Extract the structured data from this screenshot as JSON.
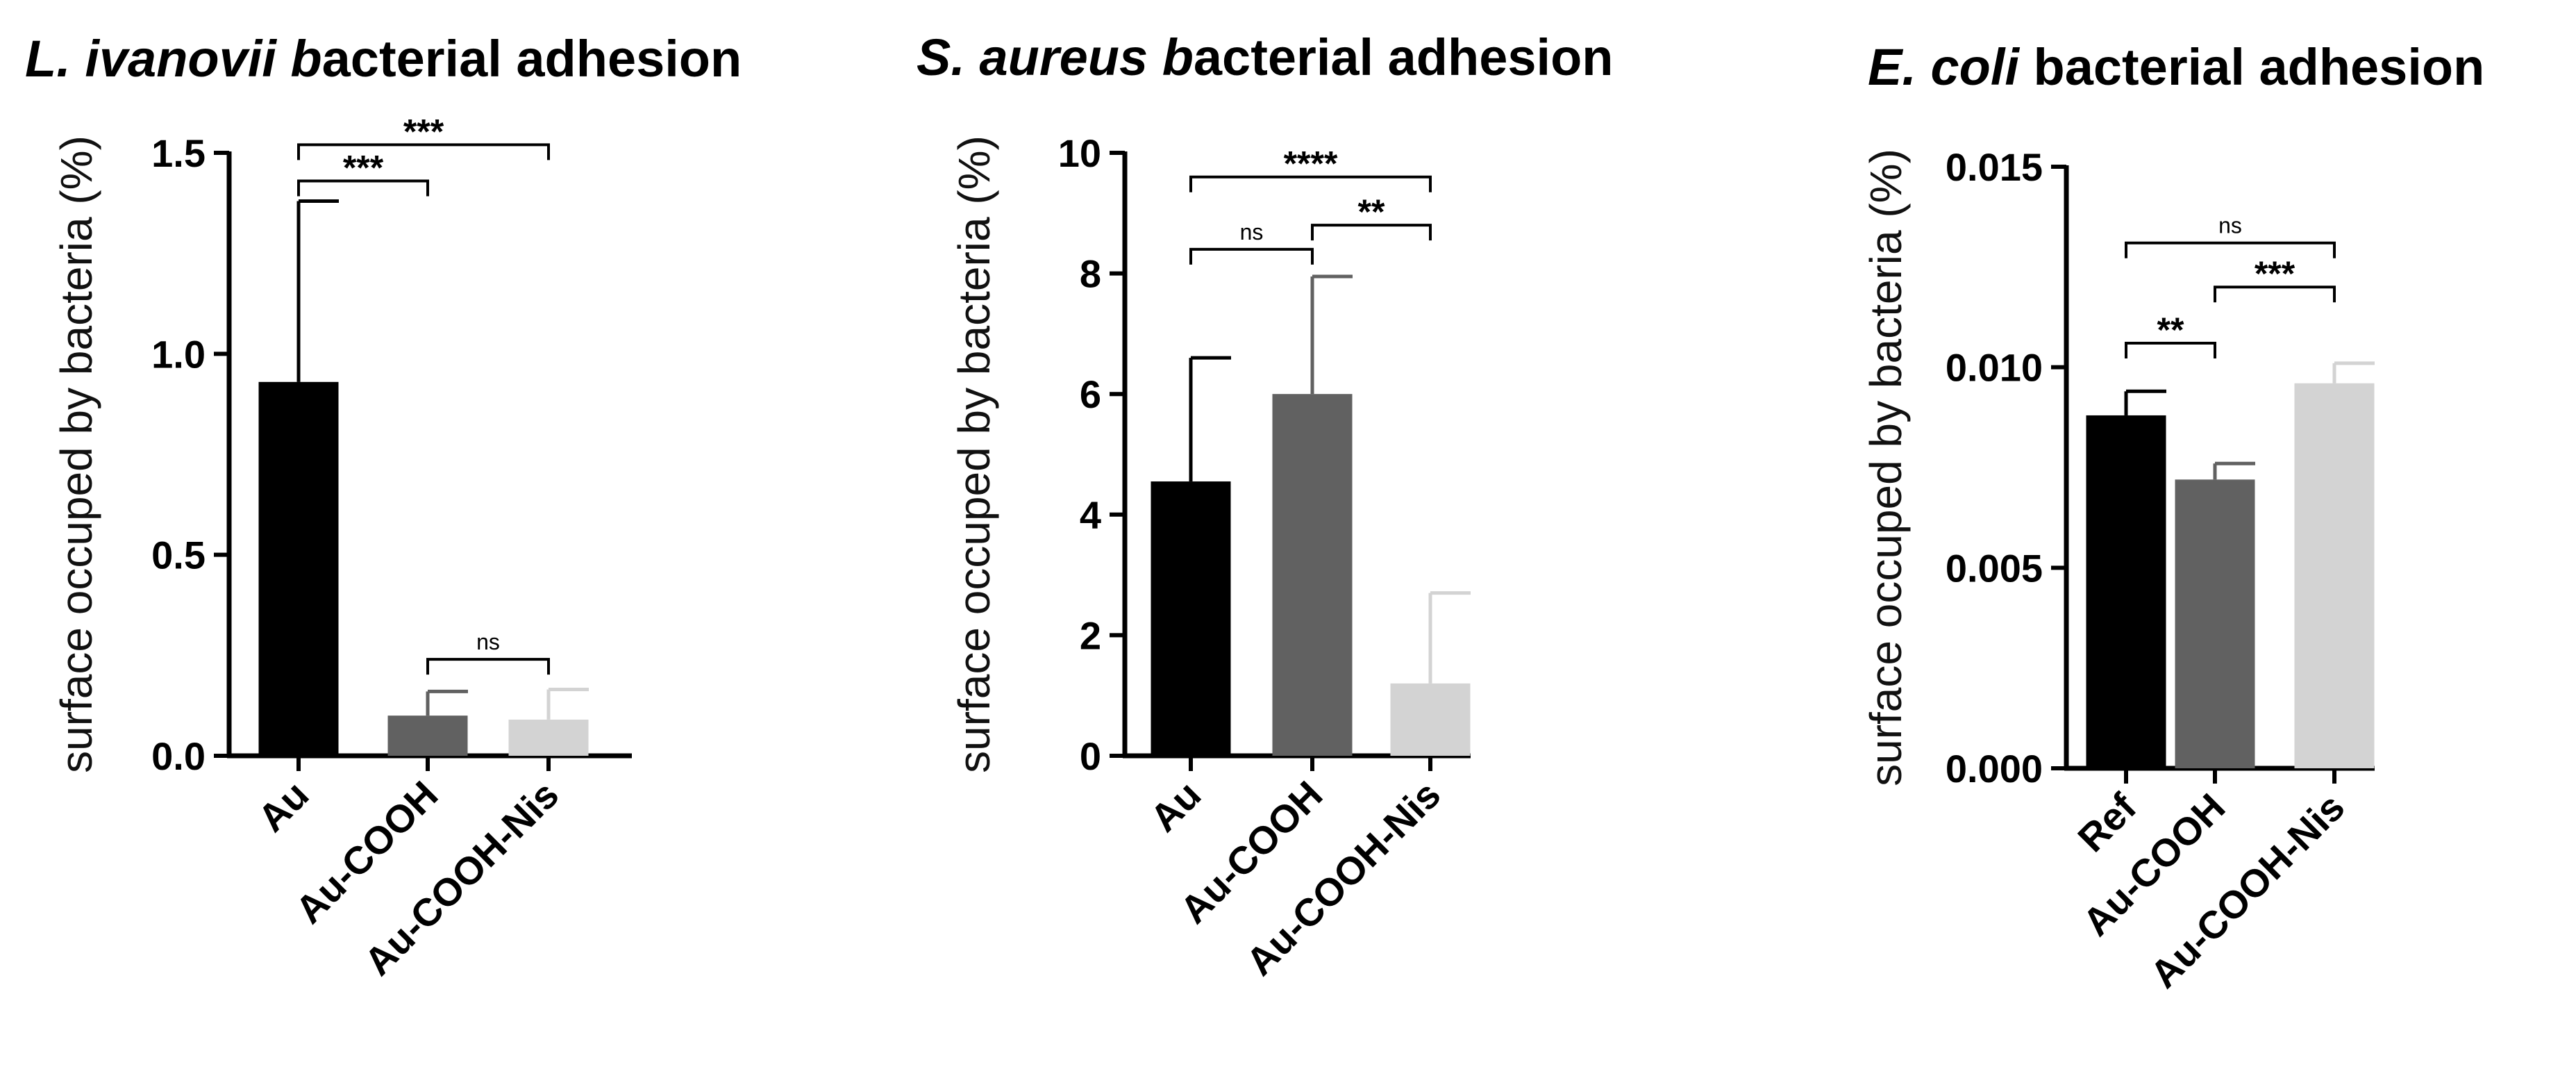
{
  "chart_data": [
    {
      "type": "bar",
      "title_italic": "L. ivanovii b",
      "title_rest": "acterial adhesion",
      "ylabel": "surface occuped by bacteria (%)",
      "categories": [
        "Au",
        "Au-COOH",
        "Au-COOH-Nis"
      ],
      "values": [
        0.93,
        0.1,
        0.09
      ],
      "errors": [
        0.45,
        0.06,
        0.075
      ],
      "ylim": [
        0,
        1.5
      ],
      "ytick_labels": [
        "0.0",
        "0.5",
        "1.0",
        "1.5"
      ],
      "bar_colors": [
        "#000000",
        "#616161",
        "#d3d3d3"
      ],
      "significance": [
        {
          "from": 0,
          "to": 2,
          "label": "***",
          "y": 1.52
        },
        {
          "from": 0,
          "to": 1,
          "label": "***",
          "y": 1.43
        },
        {
          "from": 1,
          "to": 2,
          "label": "ns",
          "y": 0.24
        }
      ]
    },
    {
      "type": "bar",
      "title_italic": "S. aureus b",
      "title_rest": "acterial adhesion",
      "ylabel": "surface occuped by bacteria (%)",
      "categories": [
        "Au",
        "Au-COOH",
        "Au-COOH-Nis"
      ],
      "values": [
        4.55,
        6.0,
        1.2
      ],
      "errors": [
        2.05,
        1.95,
        1.5
      ],
      "ylim": [
        0,
        10
      ],
      "ytick_labels": [
        "0",
        "2",
        "4",
        "6",
        "8",
        "10"
      ],
      "bar_colors": [
        "#000000",
        "#616161",
        "#d3d3d3"
      ],
      "significance": [
        {
          "from": 0,
          "to": 2,
          "label": "****",
          "y": 9.6
        },
        {
          "from": 1,
          "to": 2,
          "label": "**",
          "y": 8.8
        },
        {
          "from": 0,
          "to": 1,
          "label": "ns",
          "y": 8.4
        }
      ]
    },
    {
      "type": "bar",
      "title_italic": "E. coli",
      "title_rest": " bacterial adhesion",
      "ylabel": "surface occuped by bacteria (%)",
      "categories": [
        "Ref",
        "Au-COOH",
        "Au-COOH-Nis"
      ],
      "values": [
        0.0088,
        0.0072,
        0.0096
      ],
      "errors": [
        0.0006,
        0.0004,
        0.0005
      ],
      "ylim": [
        0,
        0.015
      ],
      "ytick_labels": [
        "0.000",
        "0.005",
        "0.010",
        "0.015"
      ],
      "bar_colors": [
        "#000000",
        "#616161",
        "#d3d3d3"
      ],
      "significance": [
        {
          "from": 0,
          "to": 2,
          "label": "ns",
          "y": 0.0131
        },
        {
          "from": 1,
          "to": 2,
          "label": "***",
          "y": 0.012
        },
        {
          "from": 0,
          "to": 1,
          "label": "**",
          "y": 0.0106
        }
      ]
    }
  ]
}
